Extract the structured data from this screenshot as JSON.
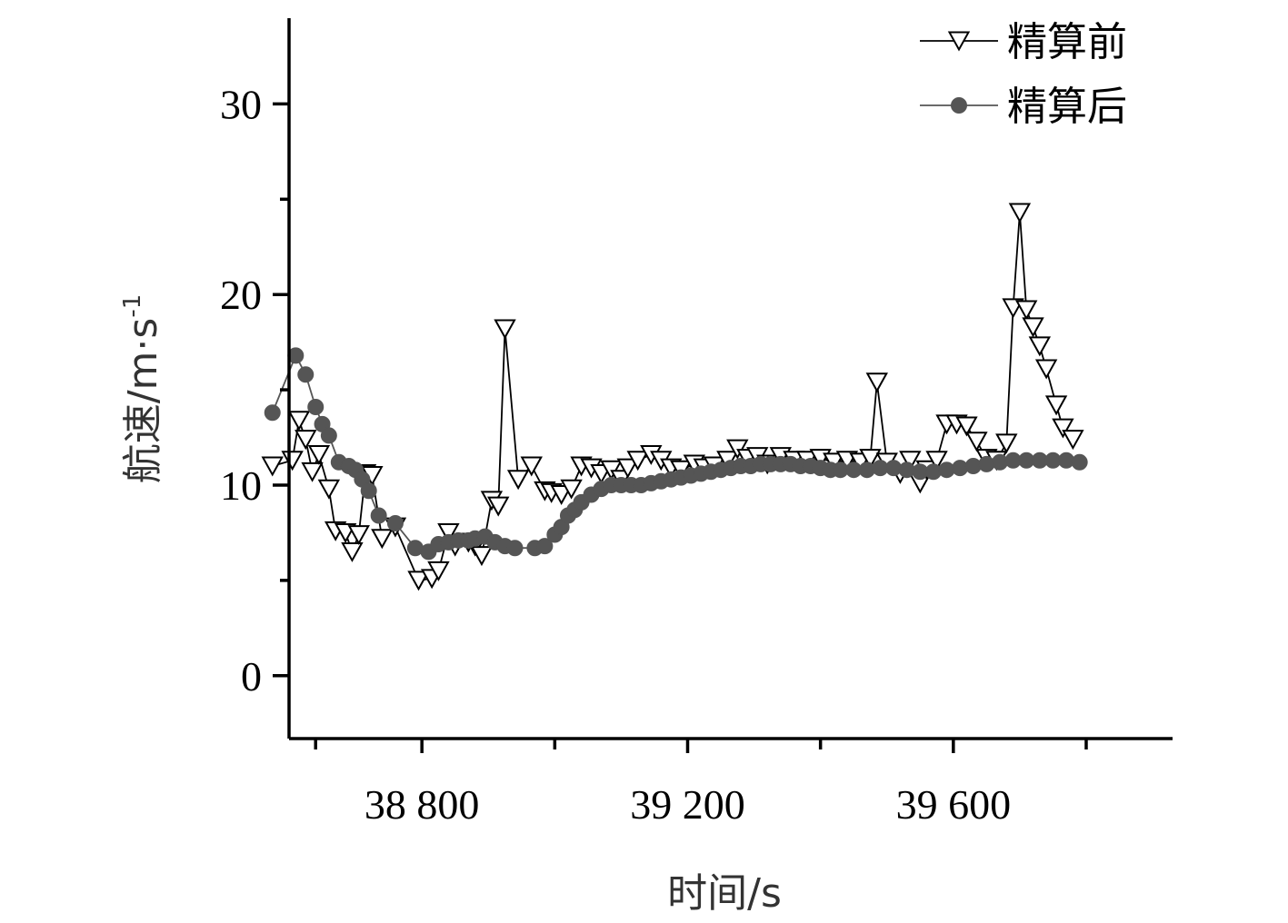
{
  "chart_data": {
    "type": "line",
    "xlabel": "时间/s",
    "ylabel_main": "航速/m·s",
    "ylabel_sup": "-1",
    "xlim": [
      38600,
      39930
    ],
    "ylim": [
      -3.3,
      34.5
    ],
    "x_ticks_major": [
      38800,
      39200,
      39600
    ],
    "x_tick_labels": [
      "38 800",
      "39 200",
      "39 600"
    ],
    "x_ticks_minor": [
      38640,
      39000,
      39400,
      39800
    ],
    "y_ticks_major": [
      0,
      10,
      20,
      30
    ],
    "y_tick_labels": [
      "0",
      "10",
      "20",
      "30"
    ],
    "y_ticks_minor": [
      5,
      15,
      25
    ],
    "legend_position": "top-right",
    "series": [
      {
        "name": "精算前",
        "marker": "open-triangle-down",
        "color": "#000000",
        "x": [
          38575,
          38605,
          38615,
          38625,
          38635,
          38645,
          38660,
          38670,
          38685,
          38695,
          38705,
          38715,
          38725,
          38740,
          38760,
          38795,
          38815,
          38825,
          38840,
          38850,
          38870,
          38880,
          38890,
          38905,
          38915,
          38925,
          38945,
          38965,
          38985,
          38995,
          39010,
          39025,
          39040,
          39055,
          39070,
          39085,
          39100,
          39110,
          39125,
          39145,
          39160,
          39175,
          39190,
          39210,
          39225,
          39240,
          39260,
          39275,
          39290,
          39305,
          39320,
          39340,
          39360,
          39380,
          39400,
          39420,
          39440,
          39460,
          39475,
          39485,
          39500,
          39520,
          39535,
          39550,
          39560,
          39575,
          39590,
          39605,
          39620,
          39635,
          39650,
          39665,
          39680,
          39690,
          39700,
          39710,
          39720,
          39730,
          39740,
          39755,
          39765,
          39780
        ],
        "y": [
          11.0,
          11.3,
          13.4,
          12.4,
          10.7,
          11.6,
          9.8,
          7.6,
          7.5,
          6.5,
          7.4,
          10.6,
          10.5,
          7.2,
          7.8,
          5.0,
          5.1,
          5.5,
          7.5,
          6.8,
          7.0,
          6.8,
          6.3,
          9.2,
          8.9,
          18.2,
          10.3,
          11.0,
          9.7,
          9.6,
          9.5,
          9.8,
          11.0,
          10.9,
          10.6,
          10.8,
          10.3,
          10.9,
          11.3,
          11.6,
          11.3,
          10.9,
          10.8,
          11.1,
          10.9,
          11.0,
          11.3,
          11.9,
          11.4,
          11.5,
          11.1,
          11.5,
          11.3,
          11.3,
          11.4,
          11.2,
          11.3,
          11.2,
          11.4,
          15.4,
          11.2,
          10.6,
          11.3,
          10.1,
          10.8,
          11.3,
          13.2,
          13.2,
          13.1,
          12.3,
          11.4,
          11.3,
          12.2,
          19.3,
          24.3,
          19.2,
          18.3,
          17.3,
          16.1,
          14.2,
          13.0,
          12.4
        ]
      },
      {
        "name": "精算后",
        "marker": "filled-circle",
        "color": "#555555",
        "x": [
          38575,
          38610,
          38625,
          38640,
          38650,
          38660,
          38675,
          38690,
          38700,
          38710,
          38720,
          38735,
          38760,
          38790,
          38810,
          38825,
          38840,
          38855,
          38870,
          38880,
          38895,
          38910,
          38925,
          38940,
          38970,
          38985,
          39000,
          39010,
          39020,
          39030,
          39040,
          39055,
          39070,
          39085,
          39100,
          39115,
          39130,
          39145,
          39160,
          39175,
          39190,
          39205,
          39220,
          39235,
          39250,
          39265,
          39280,
          39295,
          39310,
          39325,
          39340,
          39355,
          39370,
          39385,
          39400,
          39415,
          39430,
          39450,
          39470,
          39490,
          39510,
          39530,
          39550,
          39570,
          39590,
          39610,
          39630,
          39650,
          39670,
          39690,
          39710,
          39730,
          39750,
          39770,
          39790
        ],
        "y": [
          13.8,
          16.8,
          15.8,
          14.1,
          13.2,
          12.6,
          11.2,
          11.0,
          10.8,
          10.3,
          9.7,
          8.4,
          8.0,
          6.7,
          6.5,
          6.9,
          7.0,
          7.1,
          7.1,
          7.2,
          7.3,
          7.0,
          6.8,
          6.7,
          6.7,
          6.8,
          7.4,
          7.8,
          8.4,
          8.7,
          9.1,
          9.5,
          9.8,
          10.0,
          10.0,
          10.0,
          10.0,
          10.1,
          10.2,
          10.3,
          10.4,
          10.5,
          10.6,
          10.7,
          10.8,
          10.9,
          11.0,
          11.0,
          11.1,
          11.1,
          11.1,
          11.1,
          11.0,
          11.0,
          10.9,
          10.8,
          10.8,
          10.8,
          10.8,
          10.9,
          10.9,
          10.8,
          10.7,
          10.7,
          10.8,
          10.9,
          11.0,
          11.1,
          11.2,
          11.3,
          11.3,
          11.3,
          11.3,
          11.3,
          11.2
        ]
      }
    ]
  }
}
